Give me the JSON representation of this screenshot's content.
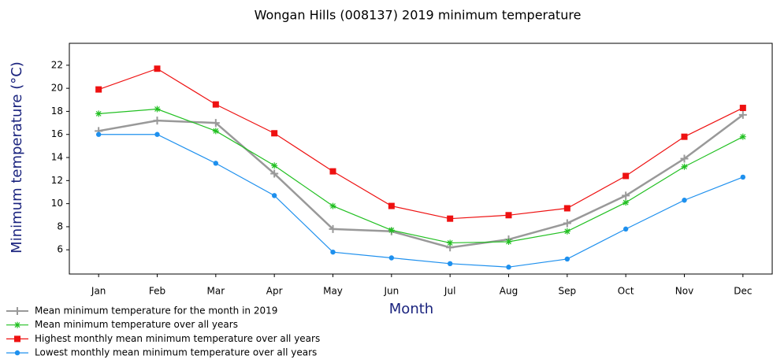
{
  "chart_data": {
    "type": "line",
    "title": "Wongan Hills (008137) 2019 minimum temperature",
    "x_label": "Month",
    "y_label": "Minimum temperature (°C)",
    "categories": [
      "Jan",
      "Feb",
      "Mar",
      "Apr",
      "May",
      "Jun",
      "Jul",
      "Aug",
      "Sep",
      "Oct",
      "Nov",
      "Dec"
    ],
    "series": [
      {
        "name": "Mean minimum temperature for the month in 2019",
        "color": "#999999",
        "marker": "plus",
        "values": [
          16.3,
          17.2,
          17.0,
          12.6,
          7.8,
          7.6,
          6.2,
          6.9,
          8.3,
          10.7,
          13.9,
          17.7
        ]
      },
      {
        "name": "Mean minimum temperature over all years",
        "color": "#22c022",
        "marker": "star",
        "values": [
          17.8,
          18.2,
          16.3,
          13.3,
          9.8,
          7.7,
          6.6,
          6.7,
          7.6,
          10.1,
          13.2,
          15.8
        ]
      },
      {
        "name": "Highest monthly mean minimum temperature over all years",
        "color": "#ee1111",
        "marker": "square",
        "values": [
          19.9,
          21.7,
          18.6,
          16.1,
          12.8,
          9.8,
          8.7,
          9.0,
          9.6,
          12.4,
          15.8,
          18.3
        ]
      },
      {
        "name": "Lowest monthly mean minimum temperature over all years",
        "color": "#1e90ee",
        "marker": "circle",
        "values": [
          16.0,
          16.0,
          13.5,
          10.7,
          5.8,
          5.3,
          4.8,
          4.5,
          5.2,
          7.8,
          10.3,
          12.3
        ]
      }
    ],
    "ylim": [
      3.9,
      23.9
    ],
    "yticks": [
      6,
      8,
      10,
      12,
      14,
      16,
      18,
      20,
      22
    ],
    "grid": false,
    "legend": "bottom-left"
  }
}
